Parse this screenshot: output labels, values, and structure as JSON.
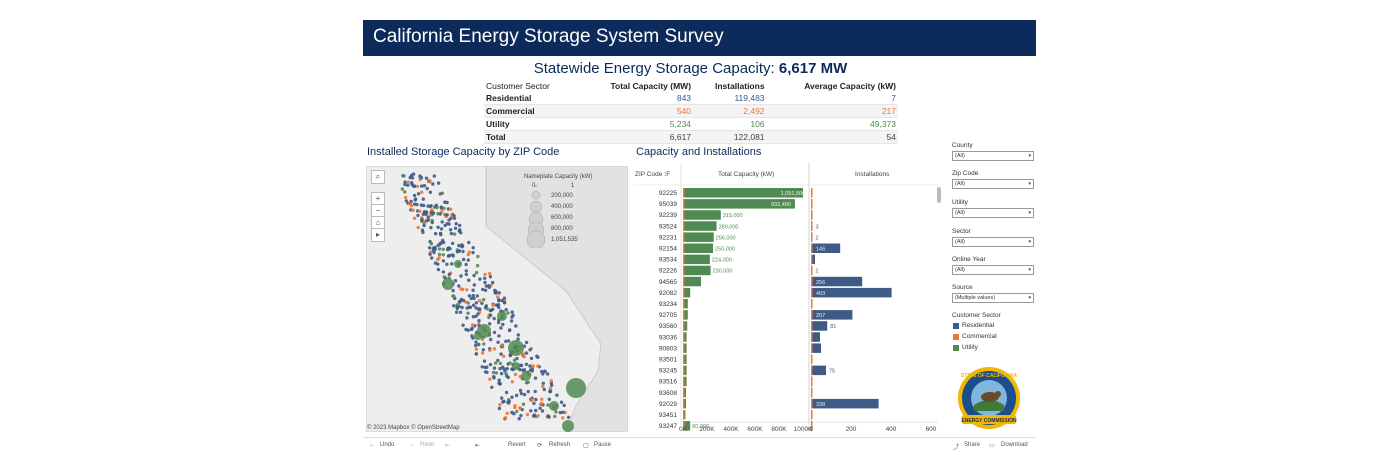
{
  "app_title": "California Energy Storage System Survey",
  "statewide": {
    "label": "Statewide Energy Storage Capacity:",
    "value": "6,617 MW"
  },
  "summary": {
    "headers": [
      "Customer Sector",
      "Total Capacity (MW)",
      "Installations",
      "Average Capacity (kW)"
    ],
    "rows": [
      {
        "sector": "Residential",
        "capacity": "843",
        "installs": "119,483",
        "avg": "7",
        "color": "#3e5a86"
      },
      {
        "sector": "Commercial",
        "capacity": "540",
        "installs": "2,492",
        "avg": "217",
        "color": "#ee7733"
      },
      {
        "sector": "Utility",
        "capacity": "5,234",
        "installs": "106",
        "avg": "49,373",
        "color": "#4f8a52"
      },
      {
        "sector": "Total",
        "capacity": "6,617",
        "installs": "122,081",
        "avg": "54",
        "color": "#444444"
      }
    ]
  },
  "map": {
    "title": "Installed Storage Capacity by ZIP Code",
    "legend_title": "Nameplate Capacity (kW)",
    "legend_values": [
      "0",
      "1",
      "200,000",
      "400,000",
      "600,000",
      "800,000",
      "1,051,535"
    ],
    "credit": "© 2023 Mapbox  © OpenStreetMap",
    "controls": {
      "search": "⌕",
      "zoom_in": "+",
      "zoom_out": "−",
      "home": "⌂",
      "expand": "▸"
    }
  },
  "capacity_chart": {
    "title": "Capacity and Installations",
    "col_zip": "ZIP Code ⁝F",
    "col_capacity": "Total Capacity (kW)",
    "col_installs": "Installations",
    "capacity_ticks": [
      "0K",
      "200K",
      "400K",
      "600K",
      "800K",
      "1000K"
    ],
    "install_ticks": [
      "0",
      "200",
      "400",
      "600"
    ]
  },
  "chart_data": {
    "type": "bar",
    "categories": [
      "92225",
      "95039",
      "92239",
      "93524",
      "92231",
      "92154",
      "93534",
      "92226",
      "94565",
      "92082",
      "93234",
      "92705",
      "93560",
      "93036",
      "90803",
      "93501",
      "93245",
      "93516",
      "93608",
      "92029",
      "93451",
      "93247"
    ],
    "series": [
      {
        "name": "Total Capacity (kW)",
        "values": [
          1051500,
          932490,
          315000,
          280000,
          256000,
          250000,
          224000,
          230000,
          150000,
          60000,
          40000,
          40000,
          35000,
          30000,
          30000,
          30000,
          30000,
          30000,
          25000,
          25000,
          20000,
          60000
        ]
      },
      {
        "name": "Installations",
        "values": [
          2,
          3,
          1,
          3,
          2,
          146,
          20,
          2,
          256,
          403,
          5,
          207,
          81,
          45,
          50,
          2,
          75,
          3,
          5,
          338,
          3,
          3
        ]
      }
    ],
    "capacity_labels": [
      "1,051,500",
      "932,490",
      "315,000",
      "280,000",
      "256,000",
      "250,000",
      "224,000",
      "230,000",
      "",
      "",
      "",
      "",
      "",
      "",
      "",
      "",
      "",
      "",
      "",
      "",
      "",
      "60,000"
    ],
    "installs_labels": [
      "",
      "",
      "",
      "3",
      "2",
      "146",
      "",
      "2",
      "256",
      "403",
      "",
      "207",
      "81",
      "",
      "",
      "",
      "75",
      "",
      "",
      "338",
      "",
      ""
    ],
    "xlim_capacity": [
      0,
      1000000
    ],
    "xlim_installs": [
      0,
      600
    ],
    "colors": {
      "residential": "#3e5a86",
      "commercial": "#ee7733",
      "utility": "#4f8a52"
    }
  },
  "filters": [
    {
      "label": "County",
      "value": "(All)"
    },
    {
      "label": "Zip Code",
      "value": "(All)"
    },
    {
      "label": "Utility",
      "value": "(All)"
    },
    {
      "label": "Sector",
      "value": "(All)"
    },
    {
      "label": "Online Year",
      "value": "(All)"
    },
    {
      "label": "Source",
      "value": "(Multiple values)"
    }
  ],
  "sector_legend": {
    "title": "Customer Sector",
    "items": [
      {
        "label": "Residential",
        "color": "#3e5a86"
      },
      {
        "label": "Commercial",
        "color": "#ee7733"
      },
      {
        "label": "Utility",
        "color": "#4f8a52"
      }
    ]
  },
  "toolbar": {
    "undo": "Undo",
    "redo": "Redo",
    "revert": "Revert",
    "refresh": "Refresh",
    "pause": "Pause",
    "share": "Share",
    "download": "Download"
  },
  "seal": {
    "top_text": "STATE OF CALIFORNIA",
    "bottom_text": "ENERGY COMMISSION"
  }
}
